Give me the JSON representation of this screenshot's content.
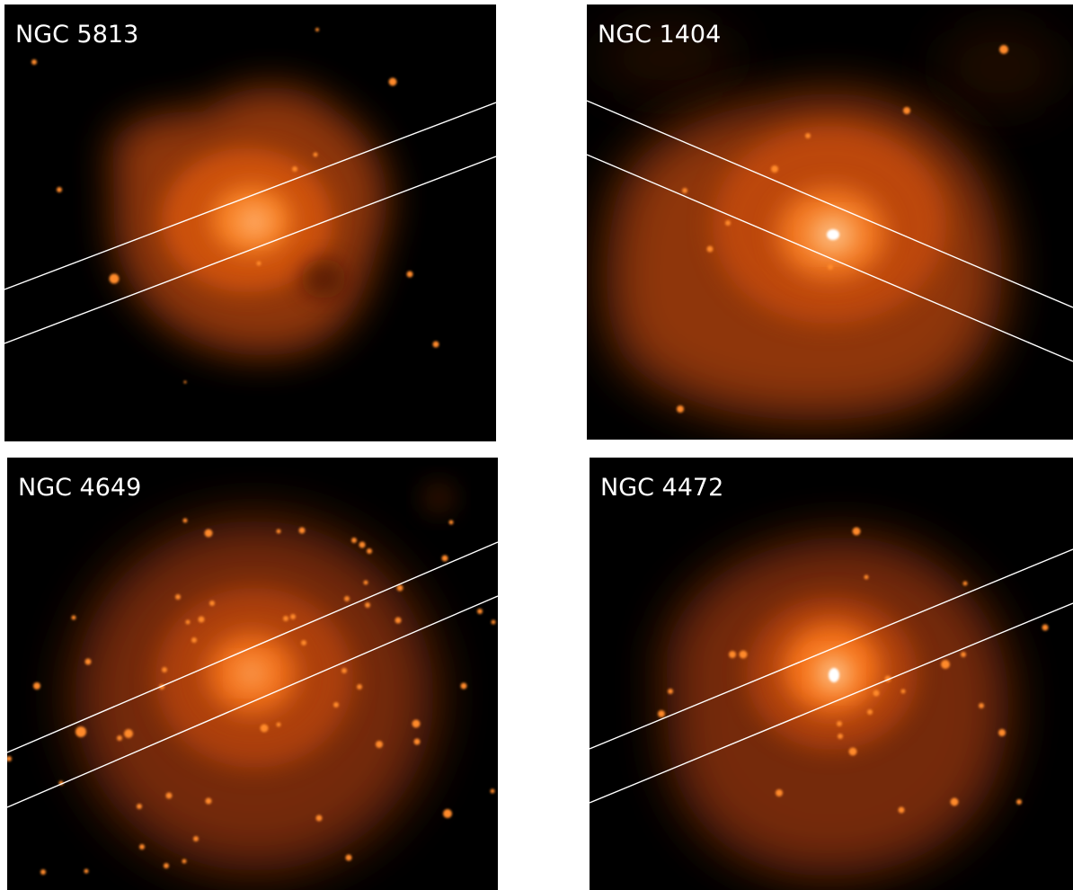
{
  "panels": [
    {
      "label": "NGC 5813"
    },
    {
      "label": "NGC 1404"
    },
    {
      "label": "NGC 4649"
    },
    {
      "label": "NGC 4472"
    }
  ],
  "colors": {
    "background": "#000000",
    "glow_core": "#ffffff",
    "glow_mid": "#ff7a1a",
    "glow_outer": "#a83a06",
    "point_source": "#ff8a2a",
    "slit_line": "#ffffff"
  }
}
